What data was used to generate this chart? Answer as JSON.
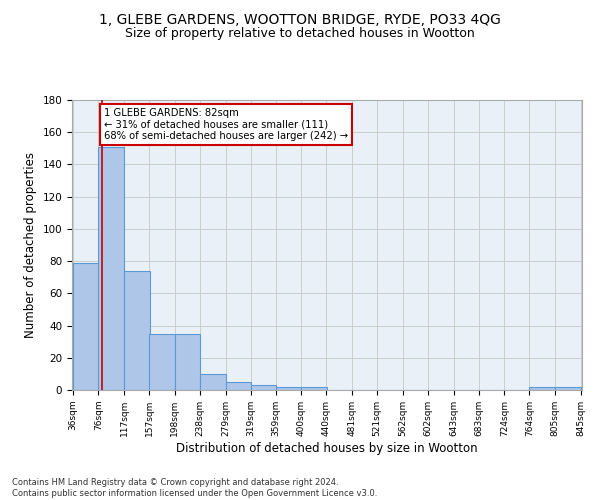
{
  "title": "1, GLEBE GARDENS, WOOTTON BRIDGE, RYDE, PO33 4QG",
  "subtitle": "Size of property relative to detached houses in Wootton",
  "xlabel": "Distribution of detached houses by size in Wootton",
  "ylabel": "Number of detached properties",
  "footer_line1": "Contains HM Land Registry data © Crown copyright and database right 2024.",
  "footer_line2": "Contains public sector information licensed under the Open Government Licence v3.0.",
  "property_label": "1 GLEBE GARDENS: 82sqm",
  "annotation_line1": "← 31% of detached houses are smaller (111)",
  "annotation_line2": "68% of semi-detached houses are larger (242) →",
  "bar_left_edges": [
    36,
    76,
    117,
    157,
    198,
    238,
    279,
    319,
    359,
    400,
    440,
    481,
    521,
    562,
    602,
    643,
    683,
    724,
    764,
    805
  ],
  "bar_heights": [
    79,
    151,
    74,
    35,
    35,
    10,
    5,
    3,
    2,
    2,
    0,
    0,
    0,
    0,
    0,
    0,
    0,
    0,
    2,
    2
  ],
  "bin_width": 41,
  "bar_color": "#aec6e8",
  "bar_edge_color": "#5b9bd5",
  "vline_x": 82,
  "vline_color": "#cc0000",
  "annotation_box_color": "#cc0000",
  "ylim": [
    0,
    180
  ],
  "yticks": [
    0,
    20,
    40,
    60,
    80,
    100,
    120,
    140,
    160,
    180
  ],
  "grid_color": "#cccccc",
  "plot_bg_color": "#eaf0f8",
  "title_fontsize": 10,
  "subtitle_fontsize": 9,
  "xlabel_fontsize": 8.5,
  "ylabel_fontsize": 8.5,
  "tick_labels": [
    "36sqm",
    "76sqm",
    "117sqm",
    "157sqm",
    "198sqm",
    "238sqm",
    "279sqm",
    "319sqm",
    "359sqm",
    "400sqm",
    "440sqm",
    "481sqm",
    "521sqm",
    "562sqm",
    "602sqm",
    "643sqm",
    "683sqm",
    "724sqm",
    "764sqm",
    "805sqm",
    "845sqm"
  ]
}
